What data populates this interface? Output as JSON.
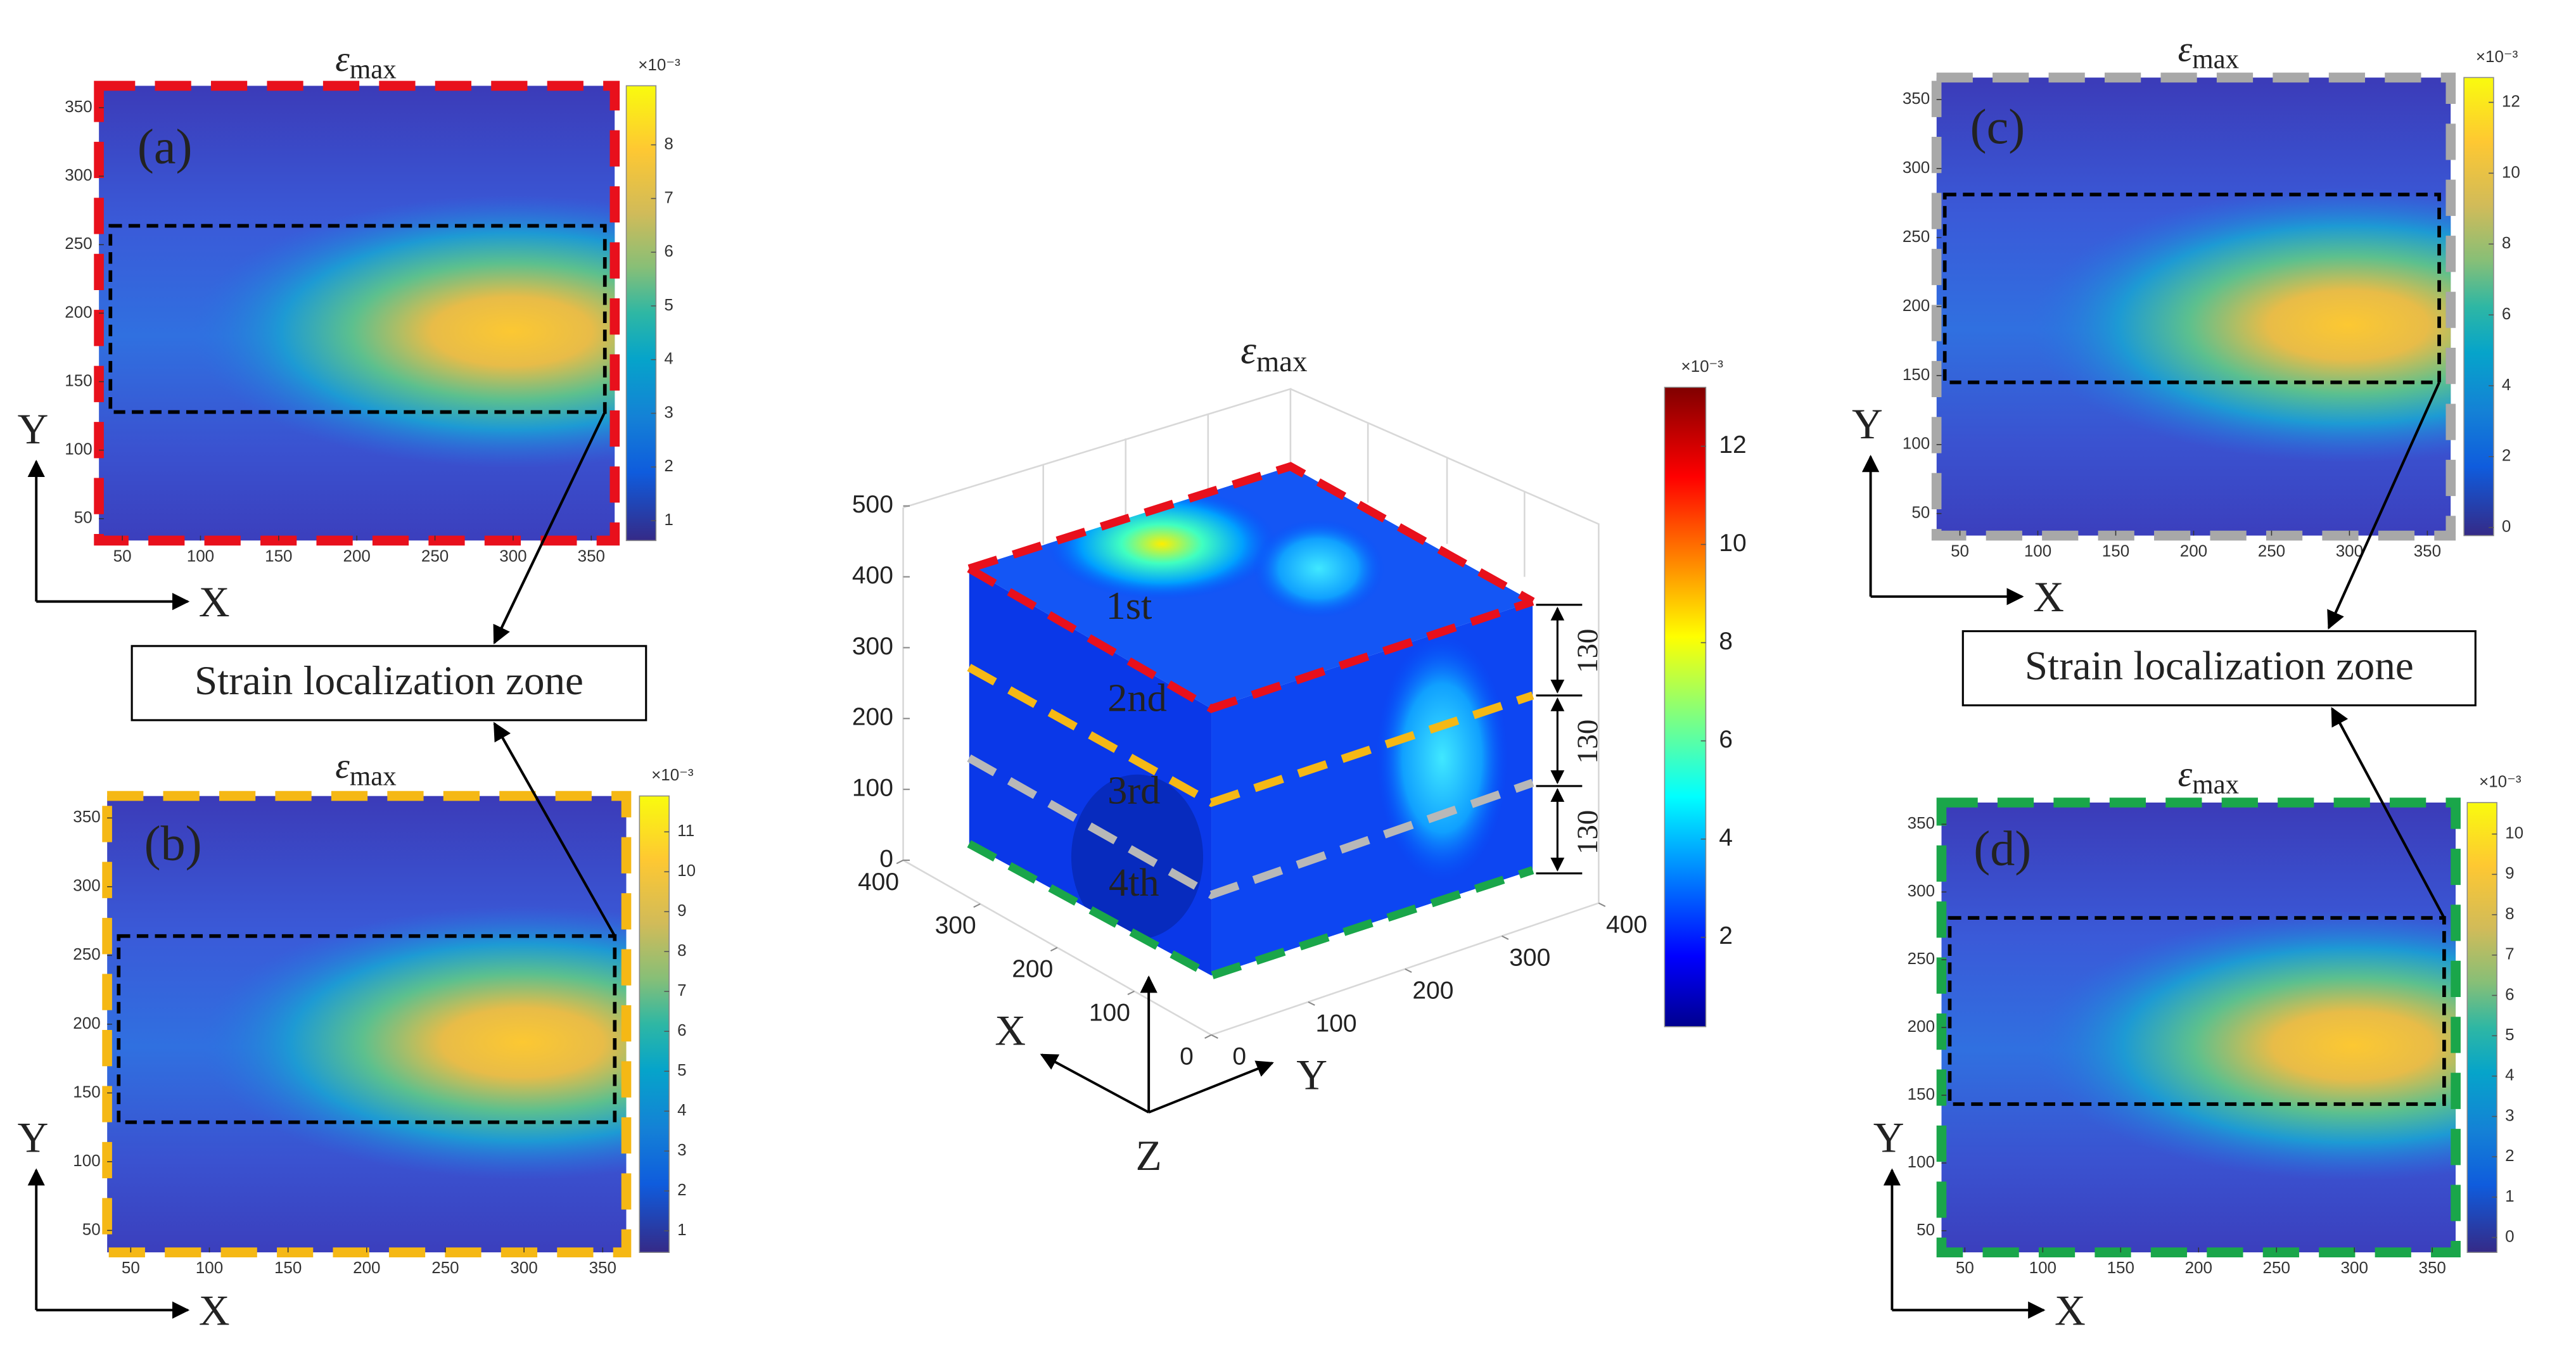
{
  "panels": [
    {
      "label": "(a)",
      "title": {
        "symbol": "ε",
        "subscript": "max"
      },
      "x_axis_label": "X",
      "y_axis_label": "Y",
      "xlim": [
        35,
        365
      ],
      "ylim": [
        34,
        366
      ],
      "xticks": [
        50,
        100,
        150,
        200,
        250,
        300,
        350
      ],
      "yticks": [
        50,
        100,
        150,
        200,
        250,
        300,
        350
      ],
      "colorbar": {
        "exponent": "×10⁻³",
        "clim": [
          0.63,
          9.1
        ],
        "ticks": [
          1,
          2,
          3,
          4,
          5,
          6,
          7,
          8
        ]
      },
      "border_color": "#e8101c"
    },
    {
      "label": "(b)",
      "title": {
        "symbol": "ε",
        "subscript": "max"
      },
      "x_axis_label": "X",
      "y_axis_label": "Y",
      "xlim": [
        35,
        365
      ],
      "ylim": [
        34,
        366
      ],
      "xticks": [
        50,
        100,
        150,
        200,
        250,
        300,
        350
      ],
      "yticks": [
        50,
        100,
        150,
        200,
        250,
        300,
        350
      ],
      "colorbar": {
        "exponent": "×10⁻³",
        "clim": [
          0.46,
          11.9
        ],
        "ticks": [
          1,
          2,
          3,
          4,
          5,
          6,
          7,
          8,
          9,
          10,
          11
        ]
      },
      "border_color": "#f5b815"
    },
    {
      "label": "(c)",
      "title": {
        "symbol": "ε",
        "subscript": "max"
      },
      "x_axis_label": "X",
      "y_axis_label": "Y",
      "xlim": [
        35,
        365
      ],
      "ylim": [
        34,
        366
      ],
      "xticks": [
        50,
        100,
        150,
        200,
        250,
        300,
        350
      ],
      "yticks": [
        50,
        100,
        150,
        200,
        250,
        300,
        350
      ],
      "colorbar": {
        "exponent": "×10⁻³",
        "clim": [
          -0.23,
          12.7
        ],
        "ticks": [
          0,
          2,
          4,
          6,
          8,
          10,
          12
        ]
      },
      "border_color": "#a8a8a8"
    },
    {
      "label": "(d)",
      "title": {
        "symbol": "ε",
        "subscript": "max"
      },
      "x_axis_label": "X",
      "y_axis_label": "Y",
      "xlim": [
        35,
        365
      ],
      "ylim": [
        34,
        366
      ],
      "xticks": [
        50,
        100,
        150,
        200,
        250,
        300,
        350
      ],
      "yticks": [
        50,
        100,
        150,
        200,
        250,
        300,
        350
      ],
      "colorbar": {
        "exponent": "×10⁻³",
        "clim": [
          -0.37,
          10.78
        ],
        "ticks": [
          0,
          1,
          2,
          3,
          4,
          5,
          6,
          7,
          8,
          9,
          10
        ]
      },
      "border_color": "#1aa64a"
    }
  ],
  "callouts": [
    "Strain localization zone",
    "Strain localization zone"
  ],
  "center": {
    "title": {
      "symbol": "ε",
      "subscript": "max"
    },
    "zlim": [
      0,
      500
    ],
    "zticks": [
      0,
      100,
      200,
      300,
      400,
      500
    ],
    "xlim": [
      0,
      400
    ],
    "xticks": [
      0,
      100,
      200,
      300,
      400
    ],
    "ylim": [
      0,
      400
    ],
    "yticks": [
      0,
      100,
      200,
      300,
      400
    ],
    "layers": [
      "1st",
      "2nd",
      "3rd",
      "4th"
    ],
    "layer_thickness": [
      "130",
      "130",
      "130"
    ],
    "axes": [
      "X",
      "Y",
      "Z"
    ],
    "colorbar": {
      "exponent": "×10⁻³",
      "clim": [
        0.18,
        13.2
      ],
      "ticks": [
        2,
        4,
        6,
        8,
        10,
        12
      ]
    }
  }
}
